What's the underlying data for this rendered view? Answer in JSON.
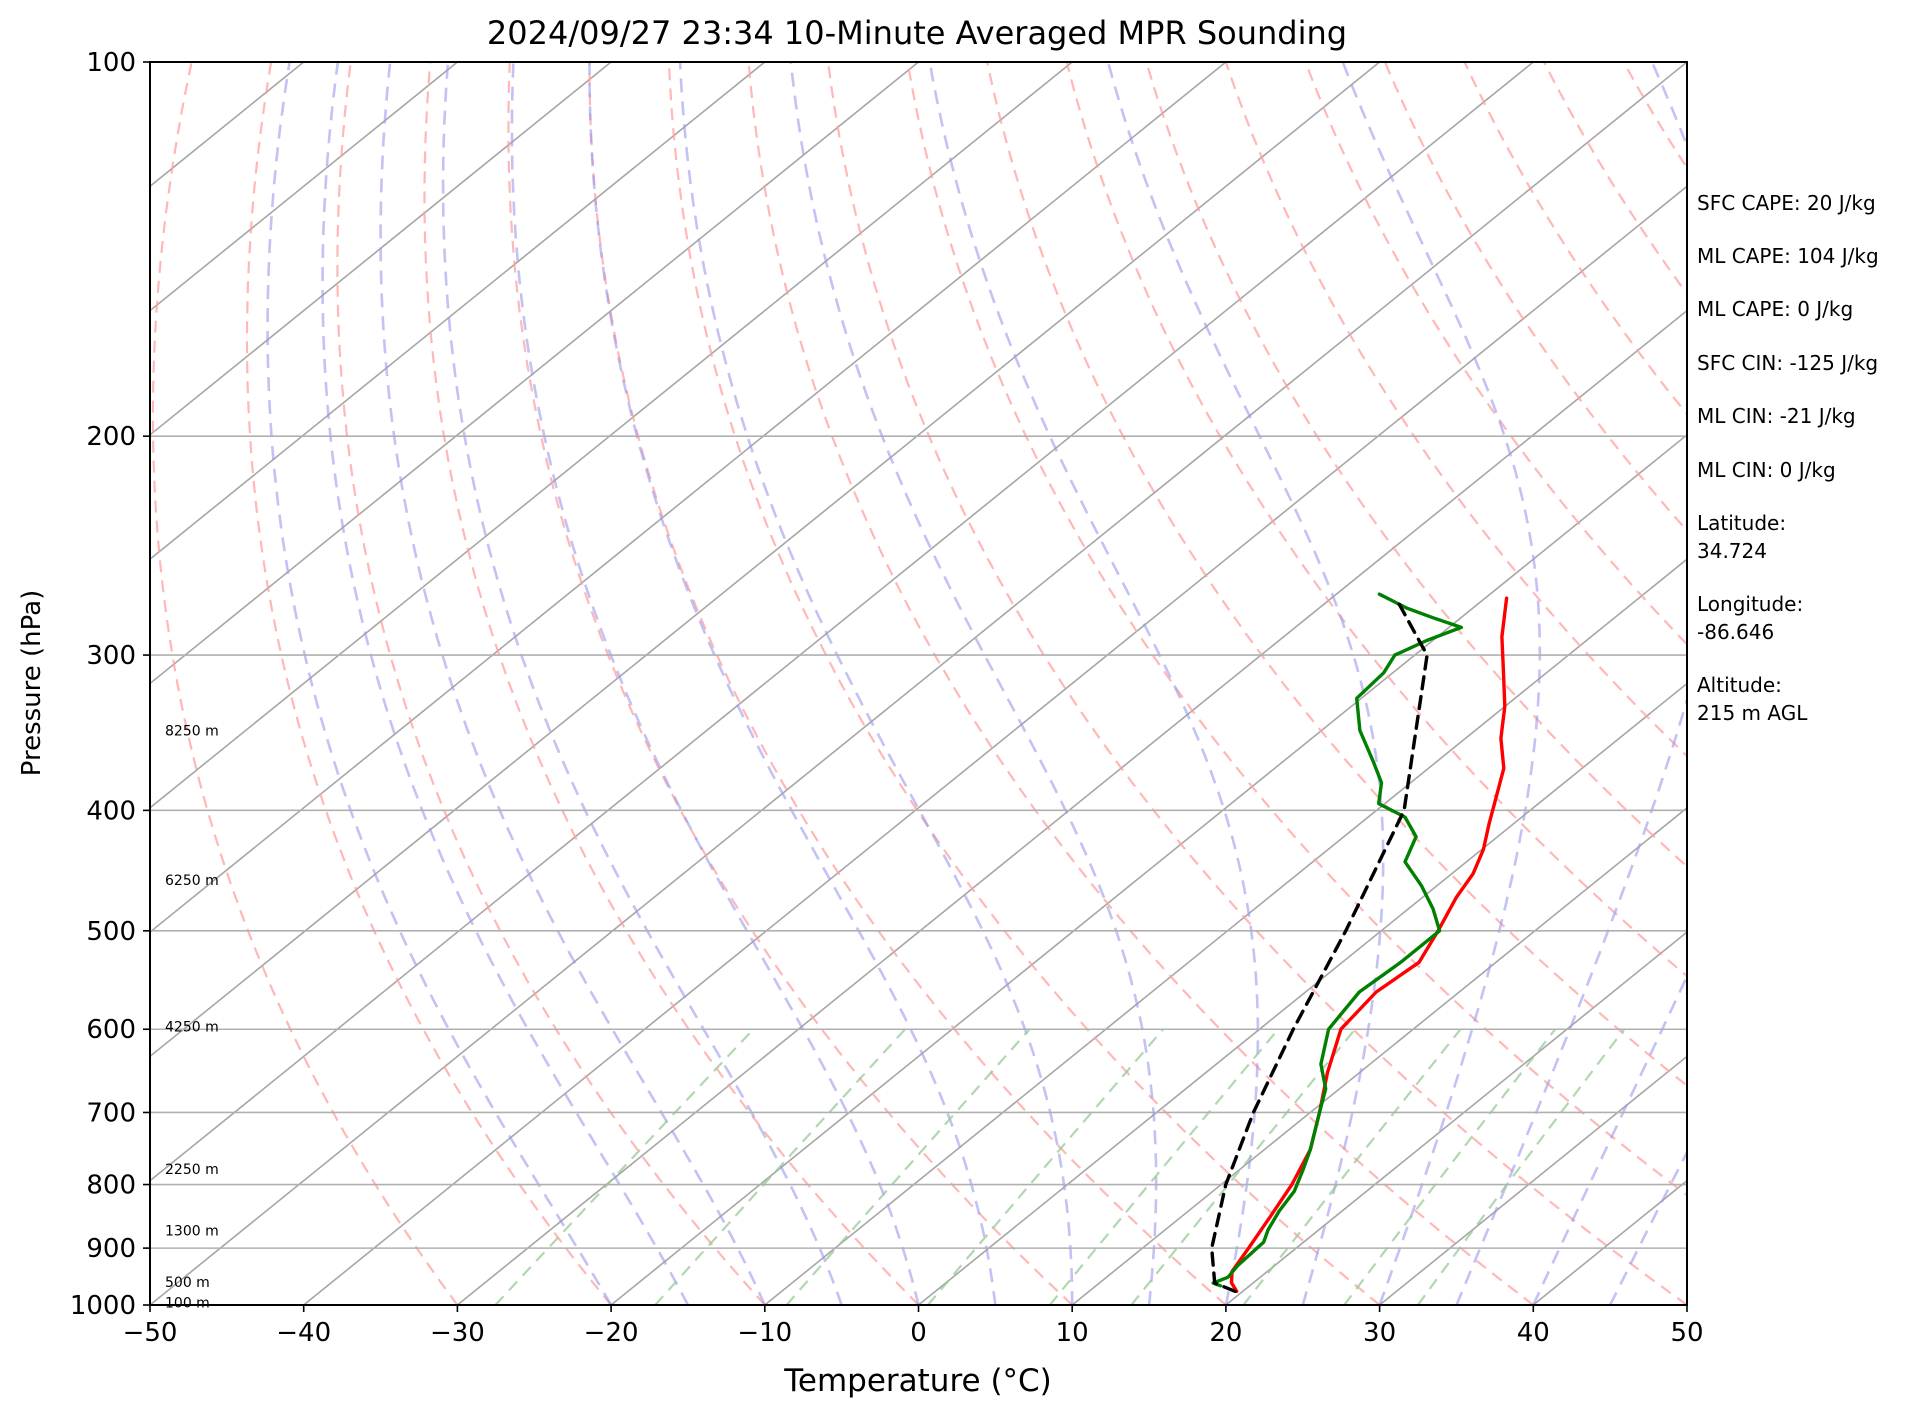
{
  "chart_data": {
    "type": "skew-t",
    "title": "2024/09/27 23:34 10-Minute Averaged MPR Sounding",
    "xlabel": "Temperature (°C)",
    "ylabel": "Pressure (hPa)",
    "xlim": [
      -50,
      50
    ],
    "ylim": [
      1000,
      100
    ],
    "y_scale": "log",
    "skew_per_decade_degC": 100,
    "x_ticks": [
      -50,
      -40,
      -30,
      -20,
      -10,
      0,
      10,
      20,
      30,
      40,
      50
    ],
    "x_tick_labels": [
      "−50",
      "−40",
      "−30",
      "−20",
      "−10",
      "0",
      "10",
      "20",
      "30",
      "40",
      "50"
    ],
    "y_ticks": [
      100,
      200,
      300,
      400,
      500,
      600,
      700,
      800,
      900,
      1000
    ],
    "y_tick_labels": [
      "100",
      "200",
      "300",
      "400",
      "500",
      "600",
      "700",
      "800",
      "900",
      "1000"
    ],
    "grid": true,
    "height_labels": [
      {
        "text": "8250 m",
        "p": 345
      },
      {
        "text": "6250 m",
        "p": 455
      },
      {
        "text": "4250 m",
        "p": 597
      },
      {
        "text": "2250 m",
        "p": 777
      },
      {
        "text": "1300 m",
        "p": 871
      },
      {
        "text": "500 m",
        "p": 958
      },
      {
        "text": "100 m",
        "p": 995
      }
    ],
    "series": [
      {
        "color": "#ff0000",
        "points": [
          {
            "p": 975,
            "t": 19.6
          },
          {
            "p": 960,
            "t": 18.6
          },
          {
            "p": 940,
            "t": 17.7
          },
          {
            "p": 900,
            "t": 16.9
          },
          {
            "p": 850,
            "t": 15.8
          },
          {
            "p": 800,
            "t": 14.6
          },
          {
            "p": 750,
            "t": 13.0
          },
          {
            "p": 700,
            "t": 10.6
          },
          {
            "p": 650,
            "t": 7.9
          },
          {
            "p": 600,
            "t": 5.3
          },
          {
            "p": 560,
            "t": 4.6
          },
          {
            "p": 530,
            "t": 5.0
          },
          {
            "p": 500,
            "t": 3.7
          },
          {
            "p": 470,
            "t": 2.2
          },
          {
            "p": 450,
            "t": 1.4
          },
          {
            "p": 430,
            "t": 0.1
          },
          {
            "p": 410,
            "t": -1.6
          },
          {
            "p": 390,
            "t": -3.3
          },
          {
            "p": 370,
            "t": -5.1
          },
          {
            "p": 350,
            "t": -7.7
          },
          {
            "p": 330,
            "t": -10.0
          },
          {
            "p": 310,
            "t": -12.8
          },
          {
            "p": 290,
            "t": -15.8
          },
          {
            "p": 270,
            "t": -18.6
          }
        ]
      },
      {
        "color": "#008000",
        "points": [
          {
            "p": 965,
            "t": 18.1
          },
          {
            "p": 960,
            "t": 17.4
          },
          {
            "p": 950,
            "t": 17.9
          },
          {
            "p": 930,
            "t": 17.6
          },
          {
            "p": 890,
            "t": 17.4
          },
          {
            "p": 870,
            "t": 16.7
          },
          {
            "p": 840,
            "t": 15.9
          },
          {
            "p": 810,
            "t": 15.3
          },
          {
            "p": 780,
            "t": 14.2
          },
          {
            "p": 750,
            "t": 13.0
          },
          {
            "p": 700,
            "t": 10.6
          },
          {
            "p": 670,
            "t": 9.1
          },
          {
            "p": 640,
            "t": 6.8
          },
          {
            "p": 600,
            "t": 4.5
          },
          {
            "p": 560,
            "t": 3.5
          },
          {
            "p": 530,
            "t": 3.8
          },
          {
            "p": 500,
            "t": 3.8
          },
          {
            "p": 480,
            "t": 1.6
          },
          {
            "p": 460,
            "t": -1.0
          },
          {
            "p": 440,
            "t": -4.0
          },
          {
            "p": 420,
            "t": -5.3
          },
          {
            "p": 405,
            "t": -7.6
          },
          {
            "p": 395,
            "t": -10.4
          },
          {
            "p": 380,
            "t": -11.9
          },
          {
            "p": 365,
            "t": -14.2
          },
          {
            "p": 345,
            "t": -17.5
          },
          {
            "p": 325,
            "t": -20.3
          },
          {
            "p": 310,
            "t": -20.6
          },
          {
            "p": 300,
            "t": -21.3
          },
          {
            "p": 292,
            "t": -20.4
          },
          {
            "p": 285,
            "t": -19.2
          },
          {
            "p": 280,
            "t": -21.8
          },
          {
            "p": 275,
            "t": -24.3
          },
          {
            "p": 268,
            "t": -27.2
          }
        ]
      },
      {
        "color": "#000000",
        "dashed": true,
        "points": [
          {
            "p": 975,
            "t": 19.5
          },
          {
            "p": 960,
            "t": 17.5
          },
          {
            "p": 900,
            "t": 14.5
          },
          {
            "p": 800,
            "t": 10.3
          },
          {
            "p": 700,
            "t": 6.3
          },
          {
            "p": 600,
            "t": 2.2
          },
          {
            "p": 500,
            "t": -2.3
          },
          {
            "p": 400,
            "t": -8.2
          },
          {
            "p": 300,
            "t": -19.2
          },
          {
            "p": 270,
            "t": -25.8
          }
        ]
      }
    ],
    "annotations": [
      "SFC CAPE: 20 J/kg",
      "ML CAPE: 104 J/kg",
      "ML CAPE: 0 J/kg",
      "SFC CIN: -125 J/kg",
      "ML CIN: -21 J/kg",
      "ML CIN: 0 J/kg",
      "Latitude:",
      "34.724",
      "Longitude:",
      "-86.646",
      "Altitude:",
      "215 m AGL"
    ]
  }
}
